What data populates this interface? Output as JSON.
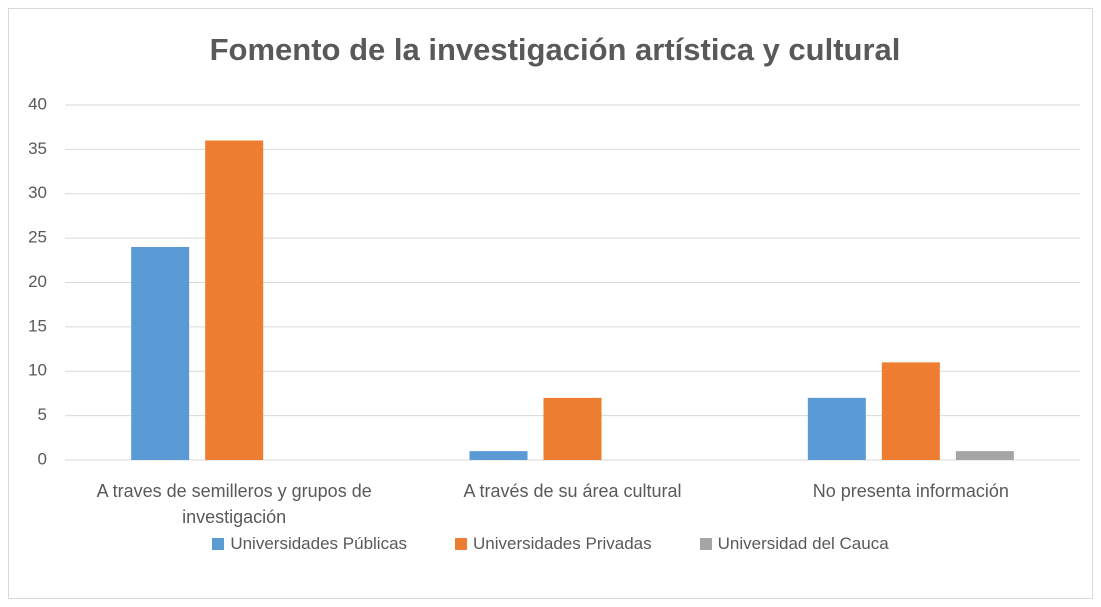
{
  "chart_data": {
    "type": "bar",
    "title": "Fomento de la investigación artística y cultural",
    "categories": [
      "A traves de semilleros y grupos de investigación",
      "A través de su área cultural",
      "No presenta información"
    ],
    "series": [
      {
        "name": "Universidades Públicas",
        "color": "#5b9bd5",
        "values": [
          24,
          1,
          7
        ]
      },
      {
        "name": "Universidades Privadas",
        "color": "#ed7d31",
        "values": [
          36,
          7,
          11
        ]
      },
      {
        "name": "Universidad del Cauca",
        "color": "#a5a5a5",
        "values": [
          0,
          0,
          1
        ]
      }
    ],
    "ylim": [
      0,
      40
    ],
    "yticks": [
      0,
      5,
      10,
      15,
      20,
      25,
      30,
      35,
      40
    ],
    "grid": true,
    "legend": "bottom"
  }
}
